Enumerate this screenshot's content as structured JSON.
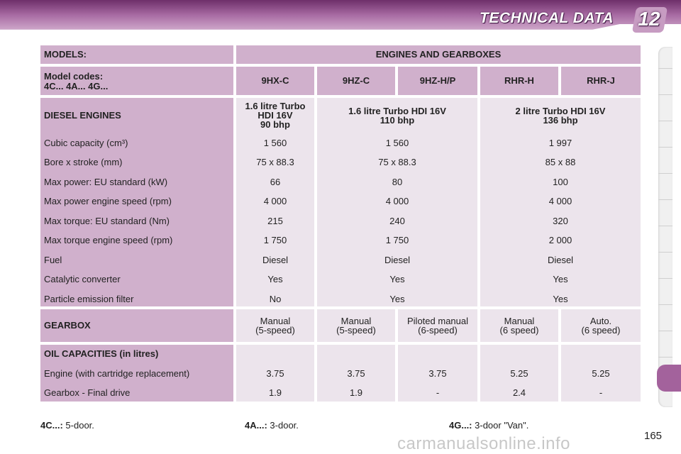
{
  "header": {
    "title": "TECHNICAL DATA",
    "chapter": "12"
  },
  "table": {
    "models_label": "MODELS:",
    "engines_label": "ENGINES AND GEARBOXES",
    "codes_label_line1": "Model codes:",
    "codes_label_line2": "4C... 4A... 4G...",
    "codes": [
      "9HX-C",
      "9HZ-C",
      "9HZ-H/P",
      "RHR-H",
      "RHR-J"
    ],
    "diesel_label": "DIESEL ENGINES",
    "engine_names": [
      [
        "1.6 litre Turbo",
        "HDI 16V",
        "90 bhp"
      ],
      [
        "1.6 litre Turbo HDI 16V",
        "110 bhp"
      ],
      [
        "2 litre Turbo HDI 16V",
        "136 bhp"
      ]
    ],
    "spec_rows": [
      {
        "label": "Cubic capacity (cm³)",
        "values": [
          "1 560",
          "1 560",
          "1 997"
        ]
      },
      {
        "label": "Bore x stroke (mm)",
        "values": [
          "75 x 88.3",
          "75 x 88.3",
          "85 x 88"
        ]
      },
      {
        "label": "Max power: EU standard (kW)",
        "values": [
          "66",
          "80",
          "100"
        ]
      },
      {
        "label": "Max power engine speed (rpm)",
        "values": [
          "4 000",
          "4 000",
          "4 000"
        ]
      },
      {
        "label": "Max torque: EU standard (Nm)",
        "values": [
          "215",
          "240",
          "320"
        ]
      },
      {
        "label": "Max torque engine speed (rpm)",
        "values": [
          "1 750",
          "1 750",
          "2 000"
        ]
      },
      {
        "label": "Fuel",
        "values": [
          "Diesel",
          "Diesel",
          "Diesel"
        ]
      },
      {
        "label": "Catalytic converter",
        "values": [
          "Yes",
          "Yes",
          "Yes"
        ]
      },
      {
        "label": "Particle emission filter",
        "values": [
          "No",
          "Yes",
          "Yes"
        ]
      }
    ],
    "gearbox_label": "GEARBOX",
    "gearboxes": [
      [
        "Manual",
        "(5-speed)"
      ],
      [
        "Manual",
        "(5-speed)"
      ],
      [
        "Piloted manual",
        "(6-speed)"
      ],
      [
        "Manual",
        "(6 speed)"
      ],
      [
        "Auto.",
        "(6 speed)"
      ]
    ],
    "oil_label": "OIL CAPACITIES (in litres)",
    "oil_rows": [
      {
        "label": "Engine (with cartridge replacement)",
        "values": [
          "3.75",
          "3.75",
          "3.75",
          "5.25",
          "5.25"
        ]
      },
      {
        "label": "Gearbox - Final drive",
        "values": [
          "1.9",
          "1.9",
          "-",
          "2.4",
          "-"
        ]
      }
    ]
  },
  "footer": {
    "notes": [
      {
        "code": "4C...:",
        "text": "5-door."
      },
      {
        "code": "4A...:",
        "text": "3-door."
      },
      {
        "code": "4G...:",
        "text": "3-door \"Van\"."
      }
    ],
    "page_number": "165",
    "watermark": "carmanualsonline.info"
  },
  "colors": {
    "header_purple": "#a96ca4",
    "cell_header": "#d0b0cc",
    "cell_body": "#ece4ec",
    "tab_active": "#a3629c"
  }
}
